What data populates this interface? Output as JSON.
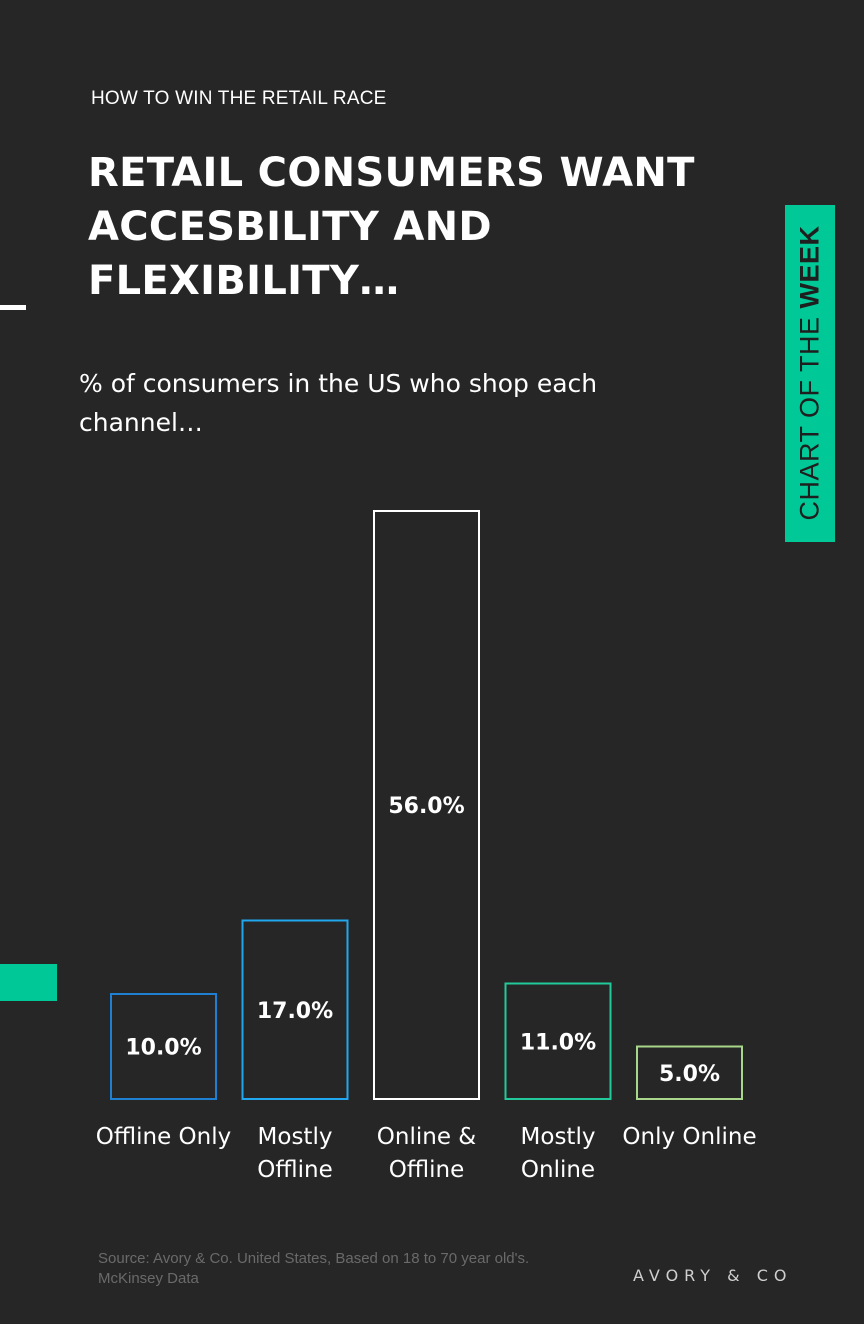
{
  "header": {
    "kicker": "HOW TO WIN THE RETAIL RACE",
    "headline": "RETAIL CONSUMERS WANT ACCESBILITY AND FLEXIBILITY…",
    "subtitle": "% of consumers in the US who shop each channel…"
  },
  "badge": {
    "prefix": "CHART OF THE ",
    "emphasis": "WEEK",
    "color": "#00c896"
  },
  "chart_data": {
    "type": "bar",
    "title": "",
    "xlabel": "",
    "ylabel": "",
    "ylim": [
      0,
      56
    ],
    "grid": false,
    "categories": [
      "Offline Only",
      "Mostly Offline",
      "Online & Offline",
      "Mostly Online",
      "Only Online"
    ],
    "category_lines": [
      [
        "Offline Only"
      ],
      [
        "Mostly",
        "Offline"
      ],
      [
        "Online &",
        "Offline"
      ],
      [
        "Mostly",
        "Online"
      ],
      [
        "Only Online"
      ]
    ],
    "values": [
      10.0,
      17.0,
      56.0,
      11.0,
      5.0
    ],
    "value_labels": [
      "10.0%",
      "17.0%",
      "56.0%",
      "11.0%",
      "5.0%"
    ],
    "bar_colors": [
      "#1f7fd1",
      "#21a7ee",
      "#ffffff",
      "#22c99a",
      "#a8d68a"
    ]
  },
  "footer": {
    "source": "Source: Avory & Co.  United States, Based on 18 to 70 year old's. McKinsey Data",
    "brand": "AVORY & CO"
  }
}
